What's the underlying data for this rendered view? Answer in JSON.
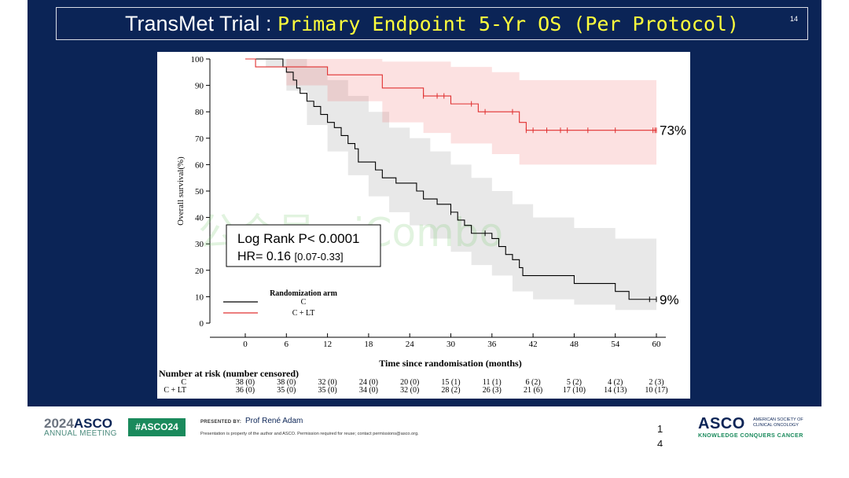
{
  "slide": {
    "title_prefix": "TransMet Trial : ",
    "title_main": "Primary Endpoint 5-Yr OS (Per Protocol)",
    "slide_number": "14"
  },
  "colors": {
    "background": "#0b2456",
    "title_highlight": "#ffff3c",
    "arm_c": "#000000",
    "arm_c_lt": "#e03030"
  },
  "watermark": "公众号 · iCombo",
  "chart_data": {
    "type": "line",
    "subtype": "kaplan-meier",
    "xlabel": "Time since randomisation (months)",
    "ylabel": "Overall survival(%)",
    "xticks": [
      0,
      6,
      12,
      18,
      24,
      30,
      36,
      42,
      48,
      54,
      60
    ],
    "yticks": [
      0,
      10,
      20,
      30,
      40,
      50,
      60,
      70,
      80,
      90,
      100
    ],
    "xlim": [
      0,
      60
    ],
    "ylim": [
      0,
      100
    ],
    "grid": false,
    "legend_title": "Randomization arm",
    "legend_position": "bottom-left",
    "stats": {
      "logrank": "Log Rank P< 0.0001",
      "hr_label": "HR= 0.16 ",
      "hr_ci": "[0.07-0.33]"
    },
    "series": [
      {
        "name": "C",
        "end_label": "9%",
        "step": [
          [
            0,
            100
          ],
          [
            2,
            100
          ],
          [
            3,
            100
          ],
          [
            5.5,
            97
          ],
          [
            6,
            95
          ],
          [
            7,
            92
          ],
          [
            7.5,
            89
          ],
          [
            8,
            87
          ],
          [
            9,
            84
          ],
          [
            10,
            82
          ],
          [
            11,
            79
          ],
          [
            12,
            76
          ],
          [
            13,
            74
          ],
          [
            14,
            71
          ],
          [
            15,
            68
          ],
          [
            16,
            66
          ],
          [
            16.5,
            61
          ],
          [
            19,
            58
          ],
          [
            20,
            55
          ],
          [
            21,
            55
          ],
          [
            22,
            53
          ],
          [
            25,
            50
          ],
          [
            26,
            47
          ],
          [
            28,
            45
          ],
          [
            30,
            42
          ],
          [
            31,
            39
          ],
          [
            32,
            37
          ],
          [
            33,
            34
          ],
          [
            36,
            32
          ],
          [
            37,
            29
          ],
          [
            38,
            26
          ],
          [
            39,
            24
          ],
          [
            40,
            21
          ],
          [
            40.5,
            18
          ],
          [
            48,
            15
          ],
          [
            54,
            12
          ],
          [
            56,
            9
          ],
          [
            60,
            9
          ]
        ],
        "ci_upper": [
          [
            0,
            100
          ],
          [
            6,
            100
          ],
          [
            9,
            97
          ],
          [
            12,
            92
          ],
          [
            15,
            86
          ],
          [
            18,
            80
          ],
          [
            21,
            74
          ],
          [
            24,
            70
          ],
          [
            27,
            65
          ],
          [
            30,
            60
          ],
          [
            33,
            55
          ],
          [
            36,
            50
          ],
          [
            39,
            45
          ],
          [
            42,
            40
          ],
          [
            48,
            36
          ],
          [
            54,
            32
          ],
          [
            60,
            26
          ]
        ],
        "ci_lower": [
          [
            0,
            100
          ],
          [
            3,
            97
          ],
          [
            6,
            88
          ],
          [
            9,
            75
          ],
          [
            12,
            65
          ],
          [
            15,
            56
          ],
          [
            18,
            48
          ],
          [
            21,
            42
          ],
          [
            24,
            37
          ],
          [
            27,
            32
          ],
          [
            30,
            27
          ],
          [
            33,
            22
          ],
          [
            36,
            18
          ],
          [
            39,
            12
          ],
          [
            42,
            9
          ],
          [
            48,
            7
          ],
          [
            54,
            5
          ],
          [
            60,
            3
          ]
        ],
        "censor_times": [
          30,
          35,
          59,
          60
        ]
      },
      {
        "name": "C + LT",
        "end_label": "73%",
        "step": [
          [
            0,
            100
          ],
          [
            1.5,
            97
          ],
          [
            10,
            97
          ],
          [
            12,
            94
          ],
          [
            20,
            89
          ],
          [
            26,
            86
          ],
          [
            30,
            83
          ],
          [
            34,
            80
          ],
          [
            40,
            76
          ],
          [
            41,
            73
          ],
          [
            60,
            73
          ]
        ],
        "ci_upper": [
          [
            0,
            100
          ],
          [
            12,
            100
          ],
          [
            20,
            99
          ],
          [
            30,
            97
          ],
          [
            36,
            95
          ],
          [
            40,
            92
          ],
          [
            60,
            90
          ]
        ],
        "ci_lower": [
          [
            0,
            100
          ],
          [
            6,
            90
          ],
          [
            12,
            84
          ],
          [
            20,
            76
          ],
          [
            26,
            72
          ],
          [
            30,
            68
          ],
          [
            36,
            64
          ],
          [
            40,
            60
          ],
          [
            60,
            60
          ]
        ],
        "censor_times": [
          26,
          28,
          29,
          33,
          35,
          39,
          41,
          42,
          44,
          46,
          47,
          50,
          54,
          59.5,
          59.8,
          60
        ]
      }
    ],
    "risk_table": {
      "title": "Number at risk (number censored)",
      "rows": [
        {
          "label": "C",
          "values": [
            "38 (0)",
            "38 (0)",
            "32 (0)",
            "24 (0)",
            "20 (0)",
            "15 (1)",
            "11 (1)",
            "6 (2)",
            "5 (2)",
            "4 (2)",
            "2 (3)"
          ]
        },
        {
          "label": "C + LT",
          "values": [
            "36 (0)",
            "35 (0)",
            "35 (0)",
            "34 (0)",
            "32 (0)",
            "28 (2)",
            "26 (3)",
            "21 (6)",
            "17 (10)",
            "14 (13)",
            "10 (17)"
          ]
        }
      ]
    }
  },
  "footer": {
    "year": "2024",
    "brand": "ASCO",
    "meeting": "ANNUAL MEETING",
    "hashtag": "#ASCO24",
    "presented_by": "PRESENTED BY:",
    "presenter": "Prof René Adam",
    "disclaimer": "Presentation is property of the author and ASCO. Permission required for reuse; contact permissions@asco.org.",
    "page_digit_1": "1",
    "page_digit_2": "4",
    "asco_logo": "ASCO",
    "asco_subtitle": "AMERICAN SOCIETY OF CLINICAL ONCOLOGY",
    "asco_tagline": "KNOWLEDGE CONQUERS CANCER"
  }
}
